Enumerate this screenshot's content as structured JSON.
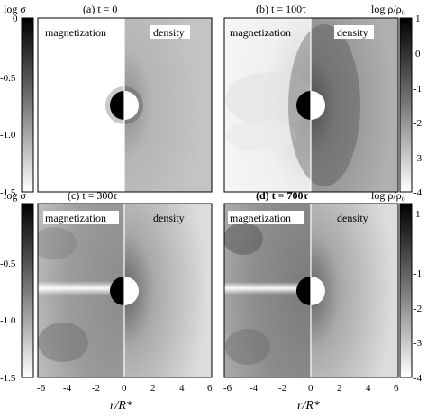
{
  "figure": {
    "left_colorbar": {
      "label": "log σ",
      "ticks": [
        "0",
        "-0.5",
        "-1.0",
        "-1.5"
      ],
      "range": [
        -1.5,
        0
      ],
      "gradient": "black-to-white (top to bottom)"
    },
    "right_colorbar": {
      "label": "log ρ/ρ₀",
      "ticks": [
        "1",
        "0",
        "-1",
        "-2",
        "-3",
        "-4"
      ],
      "range": [
        -4,
        1
      ],
      "gradient": "black-to-white (top to bottom)"
    },
    "panels": [
      {
        "id": "a",
        "title": "(a) t = 0",
        "left_label": "magnetization",
        "right_label": "density"
      },
      {
        "id": "b",
        "title": "(b) t = 100τ",
        "left_label": "magnetization",
        "right_label": "density"
      },
      {
        "id": "c",
        "title": "(c) t = 300τ",
        "left_label": "magnetization",
        "right_label": "density"
      },
      {
        "id": "d",
        "title": "(d) t = 700τ",
        "left_label": "magnetization",
        "right_label": "density"
      }
    ],
    "x_axis": {
      "label": "r/R*",
      "ticks": [
        "-6",
        "-4",
        "-2",
        "0",
        "2",
        "4",
        "6"
      ]
    }
  }
}
